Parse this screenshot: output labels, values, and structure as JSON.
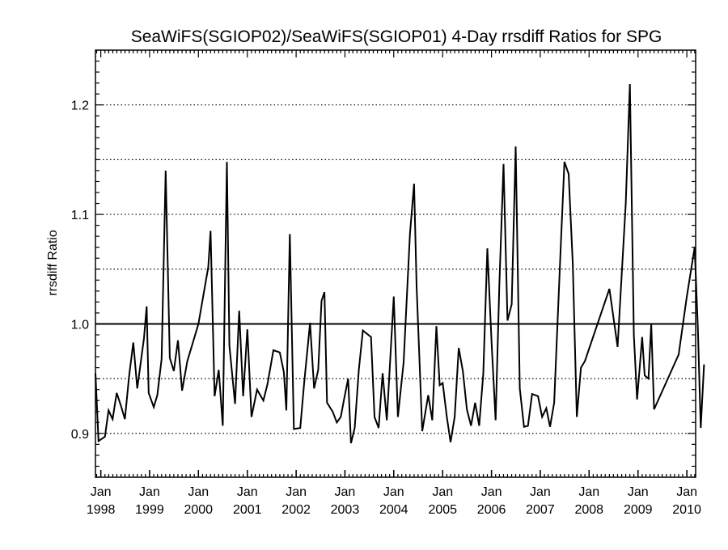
{
  "chart_data": {
    "type": "line",
    "title": "SeaWiFS(SGIOP02)/SeaWiFS(SGIOP01) 4-Day rrsdiff Ratios for SPG",
    "ylabel": "rrsdiff Ratio",
    "xlabel": "",
    "xlim": [
      "1997-11-22",
      "2010-03-08"
    ],
    "ylim": [
      0.86,
      1.25
    ],
    "grid": "horizontal dotted",
    "reference_line": 1.0,
    "yticks": [
      {
        "value": 0.9,
        "label": "0.9"
      },
      {
        "value": 1.0,
        "label": "1.0"
      },
      {
        "value": 1.1,
        "label": "1.1"
      },
      {
        "value": 1.2,
        "label": "1.2"
      }
    ],
    "dotted_gridlines": [
      0.9,
      0.95,
      1.0,
      1.05,
      1.1,
      1.15,
      1.2
    ],
    "xticks": [
      {
        "date": "1998-01-01",
        "label_top": "Jan",
        "label_bottom": "1998"
      },
      {
        "date": "1999-01-01",
        "label_top": "Jan",
        "label_bottom": "1999"
      },
      {
        "date": "2000-01-01",
        "label_top": "Jan",
        "label_bottom": "2000"
      },
      {
        "date": "2001-01-01",
        "label_top": "Jan",
        "label_bottom": "2001"
      },
      {
        "date": "2002-01-01",
        "label_top": "Jan",
        "label_bottom": "2002"
      },
      {
        "date": "2003-01-01",
        "label_top": "Jan",
        "label_bottom": "2003"
      },
      {
        "date": "2004-01-01",
        "label_top": "Jan",
        "label_bottom": "2004"
      },
      {
        "date": "2005-01-01",
        "label_top": "Jan",
        "label_bottom": "2005"
      },
      {
        "date": "2006-01-01",
        "label_top": "Jan",
        "label_bottom": "2006"
      },
      {
        "date": "2007-01-01",
        "label_top": "Jan",
        "label_bottom": "2007"
      },
      {
        "date": "2008-01-01",
        "label_top": "Jan",
        "label_bottom": "2008"
      },
      {
        "date": "2009-01-01",
        "label_top": "Jan",
        "label_bottom": "2009"
      },
      {
        "date": "2010-01-01",
        "label_top": "Jan",
        "label_bottom": "2010"
      }
    ],
    "series": [
      {
        "points": [
          [
            "1997-11-22",
            0.955
          ],
          [
            "1997-12-15",
            0.893
          ],
          [
            "1998-02-01",
            0.897
          ],
          [
            "1998-02-28",
            0.921
          ],
          [
            "1998-03-30",
            0.913
          ],
          [
            "1998-04-30",
            0.937
          ],
          [
            "1998-06-01",
            0.925
          ],
          [
            "1998-06-30",
            0.913
          ],
          [
            "1998-08-01",
            0.953
          ],
          [
            "1998-09-01",
            0.983
          ],
          [
            "1998-10-01",
            0.941
          ],
          [
            "1998-11-20",
            0.987
          ],
          [
            "1998-12-10",
            1.016
          ],
          [
            "1998-12-25",
            0.937
          ],
          [
            "1999-02-01",
            0.924
          ],
          [
            "1999-02-28",
            0.935
          ],
          [
            "1999-04-01",
            0.968
          ],
          [
            "1999-05-01",
            1.14
          ],
          [
            "1999-06-01",
            0.969
          ],
          [
            "1999-07-01",
            0.957
          ],
          [
            "1999-08-01",
            0.985
          ],
          [
            "1999-09-01",
            0.939
          ],
          [
            "1999-10-10",
            0.966
          ],
          [
            "2000-01-01",
            1.0
          ],
          [
            "2000-03-15",
            1.052
          ],
          [
            "2000-04-01",
            1.085
          ],
          [
            "2000-05-01",
            0.934
          ],
          [
            "2000-06-01",
            0.958
          ],
          [
            "2000-07-01",
            0.907
          ],
          [
            "2000-08-01",
            1.148
          ],
          [
            "2000-08-20",
            0.98
          ],
          [
            "2000-10-01",
            0.927
          ],
          [
            "2000-11-01",
            1.012
          ],
          [
            "2000-12-01",
            0.934
          ],
          [
            "2001-01-01",
            0.995
          ],
          [
            "2001-02-01",
            0.915
          ],
          [
            "2001-03-15",
            0.94
          ],
          [
            "2001-05-01",
            0.93
          ],
          [
            "2001-06-01",
            0.945
          ],
          [
            "2001-07-15",
            0.976
          ],
          [
            "2001-09-01",
            0.974
          ],
          [
            "2001-10-01",
            0.956
          ],
          [
            "2001-10-20",
            0.921
          ],
          [
            "2001-11-15",
            1.082
          ],
          [
            "2001-12-15",
            0.904
          ],
          [
            "2002-02-01",
            0.905
          ],
          [
            "2002-03-01",
            0.945
          ],
          [
            "2002-04-15",
            1.001
          ],
          [
            "2002-05-15",
            0.941
          ],
          [
            "2002-06-15",
            0.958
          ],
          [
            "2002-07-10",
            1.021
          ],
          [
            "2002-08-01",
            1.029
          ],
          [
            "2002-08-20",
            0.928
          ],
          [
            "2002-10-01",
            0.92
          ],
          [
            "2002-11-01",
            0.91
          ],
          [
            "2002-12-01",
            0.915
          ],
          [
            "2002-12-25",
            0.931
          ],
          [
            "2003-01-25",
            0.95
          ],
          [
            "2003-02-15",
            0.891
          ],
          [
            "2003-03-15",
            0.905
          ],
          [
            "2003-04-15",
            0.958
          ],
          [
            "2003-05-15",
            0.994
          ],
          [
            "2003-07-15",
            0.988
          ],
          [
            "2003-08-10",
            0.915
          ],
          [
            "2003-09-10",
            0.905
          ],
          [
            "2003-10-10",
            0.955
          ],
          [
            "2003-11-10",
            0.912
          ],
          [
            "2004-01-01",
            1.025
          ],
          [
            "2004-02-01",
            0.915
          ],
          [
            "2004-03-15",
            0.965
          ],
          [
            "2004-05-01",
            1.082
          ],
          [
            "2004-06-01",
            1.128
          ],
          [
            "2004-06-20",
            1.035
          ],
          [
            "2004-08-01",
            0.902
          ],
          [
            "2004-09-15",
            0.935
          ],
          [
            "2004-10-15",
            0.912
          ],
          [
            "2004-11-15",
            0.998
          ],
          [
            "2004-12-10",
            0.944
          ],
          [
            "2005-01-01",
            0.946
          ],
          [
            "2005-02-01",
            0.915
          ],
          [
            "2005-03-01",
            0.892
          ],
          [
            "2005-04-01",
            0.915
          ],
          [
            "2005-05-01",
            0.978
          ],
          [
            "2005-06-01",
            0.957
          ],
          [
            "2005-07-01",
            0.922
          ],
          [
            "2005-08-01",
            0.907
          ],
          [
            "2005-09-01",
            0.928
          ],
          [
            "2005-10-01",
            0.907
          ],
          [
            "2005-11-01",
            0.955
          ],
          [
            "2005-12-01",
            1.069
          ],
          [
            "2006-01-01",
            0.985
          ],
          [
            "2006-02-01",
            0.912
          ],
          [
            "2006-03-01",
            1.035
          ],
          [
            "2006-04-01",
            1.146
          ],
          [
            "2006-05-01",
            1.003
          ],
          [
            "2006-06-01",
            1.018
          ],
          [
            "2006-07-01",
            1.162
          ],
          [
            "2006-08-01",
            0.941
          ],
          [
            "2006-09-01",
            0.906
          ],
          [
            "2006-10-01",
            0.907
          ],
          [
            "2006-11-01",
            0.936
          ],
          [
            "2006-12-15",
            0.934
          ],
          [
            "2007-01-15",
            0.915
          ],
          [
            "2007-02-15",
            0.923
          ],
          [
            "2007-03-15",
            0.906
          ],
          [
            "2007-04-15",
            0.928
          ],
          [
            "2007-06-01",
            1.065
          ],
          [
            "2007-07-01",
            1.148
          ],
          [
            "2007-08-01",
            1.137
          ],
          [
            "2007-09-01",
            1.055
          ],
          [
            "2007-10-01",
            0.915
          ],
          [
            "2007-11-01",
            0.96
          ],
          [
            "2007-12-01",
            0.966
          ],
          [
            "2008-06-01",
            1.032
          ],
          [
            "2008-08-01",
            0.979
          ],
          [
            "2008-10-01",
            1.11
          ],
          [
            "2008-11-01",
            1.219
          ],
          [
            "2008-12-01",
            0.99
          ],
          [
            "2008-12-25",
            0.931
          ],
          [
            "2009-02-01",
            0.988
          ],
          [
            "2009-02-20",
            0.953
          ],
          [
            "2009-03-20",
            0.95
          ],
          [
            "2009-04-10",
            1.0
          ],
          [
            "2009-05-01",
            0.922
          ],
          [
            "2009-11-01",
            0.972
          ],
          [
            "2010-01-01",
            1.025
          ],
          [
            "2010-03-01",
            1.07
          ],
          [
            "2010-03-25",
            0.995
          ],
          [
            "2010-04-15",
            0.905
          ],
          [
            "2010-05-10",
            0.963
          ]
        ]
      }
    ]
  }
}
